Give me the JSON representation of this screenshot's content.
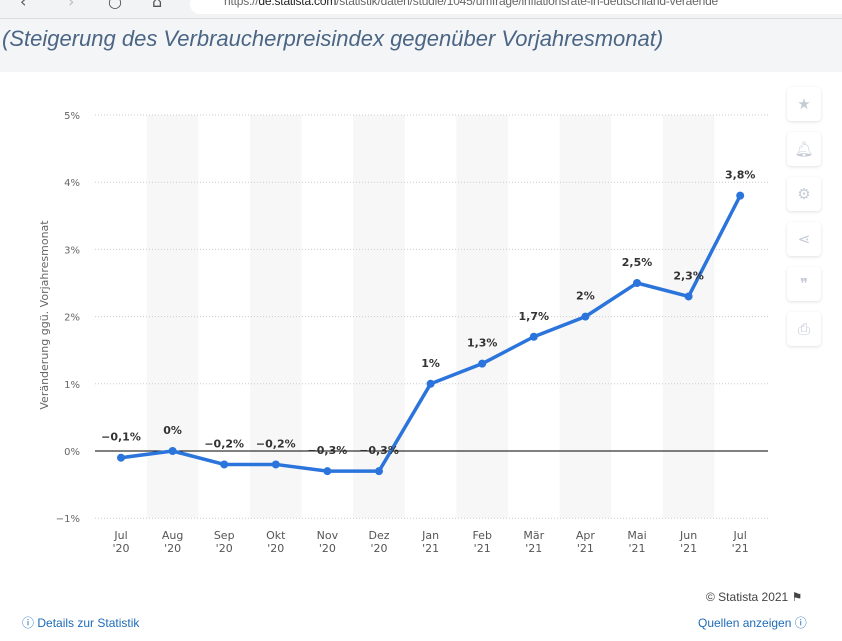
{
  "browser": {
    "url_domain": "de.statista.com",
    "url_prefix": "https://",
    "url_path": "/statistik/daten/studie/1045/umfrage/inflationsrate-in-deutschland-veraende"
  },
  "subtitle": "(Steigerung des Verbraucherpreisindex gegenüber Vorjahresmonat)",
  "sidebar": {
    "icons": [
      "star-icon",
      "bell-icon",
      "gear-icon",
      "share-icon",
      "quote-icon",
      "print-icon"
    ]
  },
  "footer": {
    "copyright": "© Statista 2021",
    "details": "Details zur Statistik",
    "sources": "Quellen anzeigen"
  },
  "chart_data": {
    "type": "line",
    "ylabel": "Veränderung ggü. Vorjahresmonat",
    "ylim": [
      -1,
      5
    ],
    "yticks": [
      "−1%",
      "0%",
      "1%",
      "2%",
      "3%",
      "4%",
      "5%"
    ],
    "categories": [
      [
        "Jul",
        "'20"
      ],
      [
        "Aug",
        "'20"
      ],
      [
        "Sep",
        "'20"
      ],
      [
        "Okt",
        "'20"
      ],
      [
        "Nov",
        "'20"
      ],
      [
        "Dez",
        "'20"
      ],
      [
        "Jan",
        "'21"
      ],
      [
        "Feb",
        "'21"
      ],
      [
        "Mär",
        "'21"
      ],
      [
        "Apr",
        "'21"
      ],
      [
        "Mai",
        "'21"
      ],
      [
        "Jun",
        "'21"
      ],
      [
        "Jul",
        "'21"
      ]
    ],
    "values": [
      -0.1,
      0,
      -0.2,
      -0.2,
      -0.3,
      -0.3,
      1,
      1.3,
      1.7,
      2,
      2.5,
      2.3,
      3.8
    ],
    "labels": [
      "−0,1%",
      "0%",
      "−0,2%",
      "−0,2%",
      "−0,3%",
      "−0,3%",
      "1%",
      "1,3%",
      "1,7%",
      "2%",
      "2,5%",
      "2,3%",
      "3,8%"
    ],
    "grid": true,
    "line_color": "#2a74db"
  }
}
